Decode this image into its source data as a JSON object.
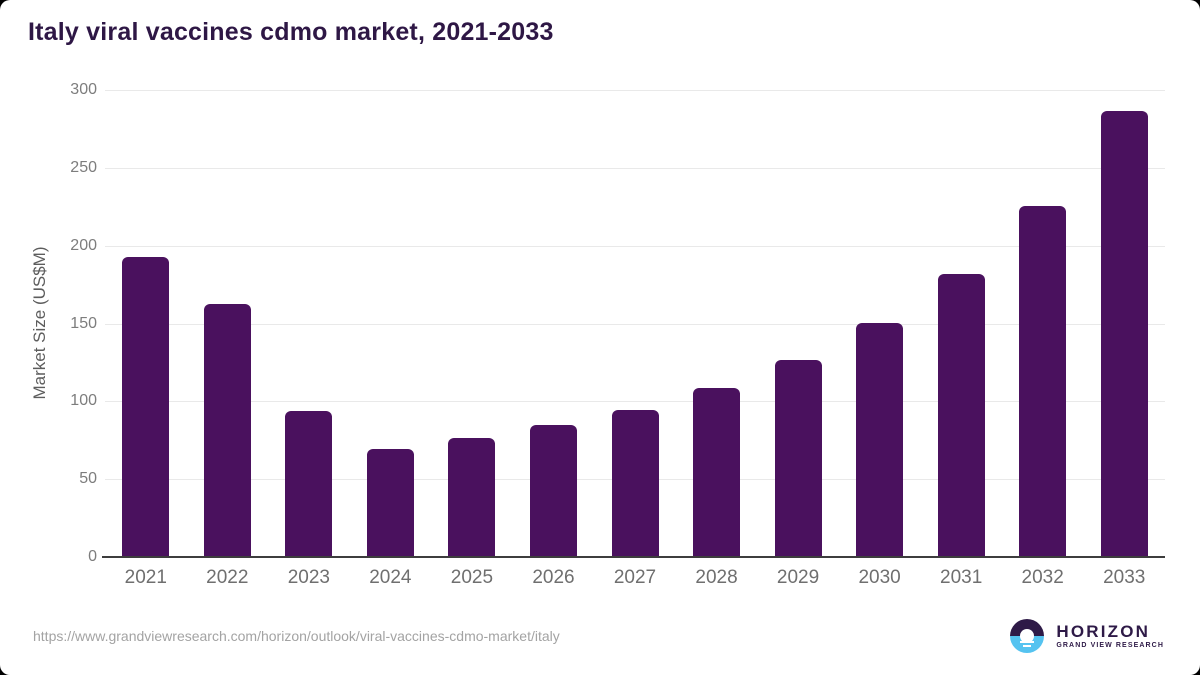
{
  "chart_data": {
    "type": "bar",
    "title": "Italy viral vaccines cdmo market, 2021-2033",
    "categories": [
      "2021",
      "2022",
      "2023",
      "2024",
      "2025",
      "2026",
      "2027",
      "2028",
      "2029",
      "2030",
      "2031",
      "2032",
      "2033"
    ],
    "values": [
      192,
      162,
      93,
      69,
      76,
      84,
      94,
      108,
      126,
      150,
      181,
      225,
      286
    ],
    "xlabel": "",
    "ylabel": "Market Size (US$M)",
    "ylim": [
      0,
      300
    ],
    "yticks": [
      0,
      50,
      100,
      150,
      200,
      250,
      300
    ],
    "grid": true,
    "legend": false,
    "bar_color": "#4a115e"
  },
  "footer": {
    "source_url": "https://www.grandviewresearch.com/horizon/outlook/viral-vaccines-cdmo-market/italy",
    "logo": {
      "brand": "HORIZON",
      "tagline": "GRAND VIEW RESEARCH"
    }
  },
  "colors": {
    "title_text": "#2e1745",
    "bar": "#4a115e",
    "logo_purple": "#2e1a47",
    "logo_blue": "#55c3f0",
    "y_axis_text": "#7d7d7d",
    "x_axis_text": "#6f6f6f",
    "gridline": "#e9e9e9",
    "baseline": "#3d3d3d",
    "url_text": "#a3a3a3"
  }
}
